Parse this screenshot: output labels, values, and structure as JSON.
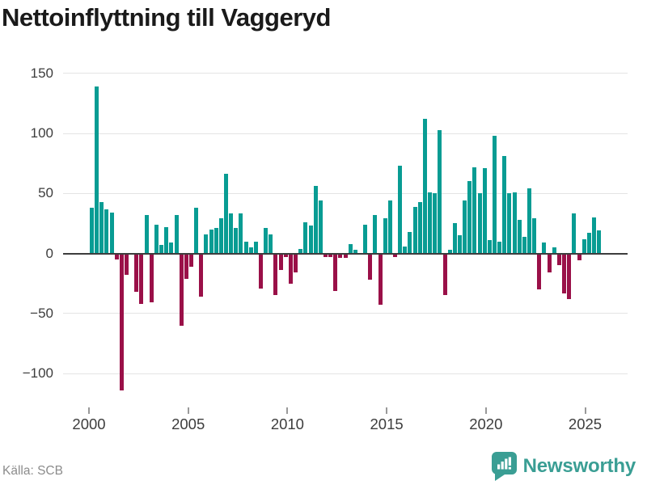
{
  "title": "Nettoinflyttning till Vaggeryd",
  "source": "Källa: SCB",
  "brand": {
    "name": "Newsworthy"
  },
  "colors": {
    "positive": "#089c93",
    "negative": "#9a1048",
    "grid": "#e4e4e4",
    "zero_line": "#3d3d3d",
    "axis_text": "#3d3d3d",
    "tick_mark": "#999999",
    "title_text": "#1a1a1a",
    "source_text": "#8c8c8c",
    "brand_teal": "#3a9e94",
    "background": "#ffffff"
  },
  "chart_data": {
    "type": "bar",
    "title": "Nettoinflyttning till Vaggeryd",
    "x_unit": "quarter",
    "x_start": "2000 Q1",
    "x_freq": "quarterly",
    "x": [
      "2000-Q1",
      "2000-Q2",
      "2000-Q3",
      "2000-Q4",
      "2001-Q1",
      "2001-Q2",
      "2001-Q3",
      "2001-Q4",
      "2002-Q1",
      "2002-Q2",
      "2002-Q3",
      "2002-Q4",
      "2003-Q1",
      "2003-Q2",
      "2003-Q3",
      "2003-Q4",
      "2004-Q1",
      "2004-Q2",
      "2004-Q3",
      "2004-Q4",
      "2005-Q1",
      "2005-Q2",
      "2005-Q3",
      "2005-Q4",
      "2006-Q1",
      "2006-Q2",
      "2006-Q3",
      "2006-Q4",
      "2007-Q1",
      "2007-Q2",
      "2007-Q3",
      "2007-Q4",
      "2008-Q1",
      "2008-Q2",
      "2008-Q3",
      "2008-Q4",
      "2009-Q1",
      "2009-Q2",
      "2009-Q3",
      "2009-Q4",
      "2010-Q1",
      "2010-Q2",
      "2010-Q3",
      "2010-Q4",
      "2011-Q1",
      "2011-Q2",
      "2011-Q3",
      "2011-Q4",
      "2012-Q1",
      "2012-Q2",
      "2012-Q3",
      "2012-Q4",
      "2013-Q1",
      "2013-Q2",
      "2013-Q3",
      "2013-Q4",
      "2014-Q1",
      "2014-Q2",
      "2014-Q3",
      "2014-Q4",
      "2015-Q1",
      "2015-Q2",
      "2015-Q3",
      "2015-Q4",
      "2016-Q1",
      "2016-Q2",
      "2016-Q3",
      "2016-Q4",
      "2017-Q1",
      "2017-Q2",
      "2017-Q3",
      "2017-Q4",
      "2018-Q1",
      "2018-Q2",
      "2018-Q3",
      "2018-Q4",
      "2019-Q1",
      "2019-Q2",
      "2019-Q3",
      "2019-Q4",
      "2020-Q1",
      "2020-Q2",
      "2020-Q3",
      "2020-Q4",
      "2021-Q1",
      "2021-Q2",
      "2021-Q3",
      "2021-Q4",
      "2022-Q1",
      "2022-Q2",
      "2022-Q3",
      "2022-Q4",
      "2023-Q1",
      "2023-Q2",
      "2023-Q3",
      "2023-Q4",
      "2024-Q1",
      "2024-Q2",
      "2024-Q3",
      "2024-Q4",
      "2025-Q1",
      "2025-Q2",
      "2025-Q3"
    ],
    "values": [
      38,
      139,
      43,
      37,
      34,
      -5,
      -114,
      -18,
      0,
      -32,
      -42,
      32,
      -41,
      24,
      7,
      22,
      9,
      32,
      -60,
      -21,
      -11,
      38,
      -36,
      16,
      20,
      21,
      29,
      66,
      33,
      21,
      33,
      10,
      5,
      10,
      -29,
      21,
      16,
      -35,
      -14,
      -3,
      -25,
      -16,
      4,
      26,
      23,
      56,
      44,
      -3,
      -3,
      -31,
      -4,
      -4,
      8,
      3,
      0,
      24,
      -22,
      32,
      -43,
      29,
      44,
      -3,
      73,
      6,
      18,
      39,
      43,
      112,
      51,
      50,
      103,
      -35,
      3,
      25,
      15,
      44,
      60,
      72,
      50,
      71,
      11,
      98,
      10,
      81,
      50,
      51,
      28,
      14,
      54,
      29,
      -30,
      9,
      -16,
      5,
      -10,
      -33,
      -38,
      33,
      -6,
      12,
      17,
      30,
      19
    ],
    "ylabel": "",
    "xlabel": "",
    "ylim": [
      -125,
      158
    ],
    "yticks": [
      150,
      100,
      50,
      0,
      -50,
      -100
    ],
    "ytick_labels": [
      "150",
      "100",
      "50",
      "0",
      "−50",
      "−100"
    ],
    "xticks": [
      2000,
      2005,
      2010,
      2015,
      2020,
      2025
    ],
    "grid": "horizontal",
    "legend": "none"
  }
}
